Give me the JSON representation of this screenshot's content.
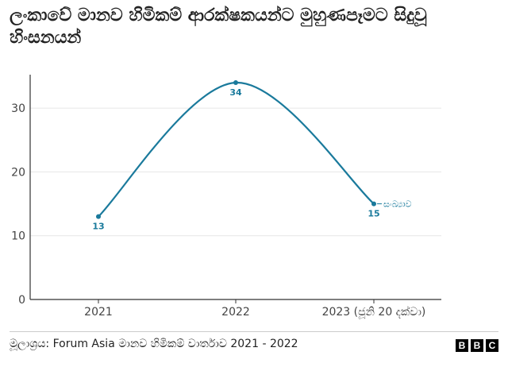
{
  "title": "ලංකාවේ මානව හිමිකම් ආරක්ෂකයන්ට මුහුණපෑමට සිදුවූ හිංසනයන්",
  "source": "මූලාශ්‍රය: Forum Asia මානව හිමිකම් වාර්තාව 2021 - 2022",
  "logo_letters": [
    "B",
    "B",
    "C"
  ],
  "colors": {
    "line": "#1a7a9c",
    "grid": "#e6e6e6",
    "axis": "#333333",
    "text": "#444444"
  },
  "chart_data": {
    "type": "line",
    "categories": [
      "2021",
      "2022",
      "2023 (ජූනි 20 දක්වා)"
    ],
    "series": [
      {
        "name": "සංඛ්‍යාව",
        "values": [
          13,
          34,
          15
        ]
      }
    ],
    "ylim": [
      0,
      35
    ],
    "yticks": [
      0,
      10,
      20,
      30
    ],
    "data_labels": [
      "13",
      "34",
      "15"
    ],
    "grid": true,
    "legend": "end-of-line label"
  }
}
